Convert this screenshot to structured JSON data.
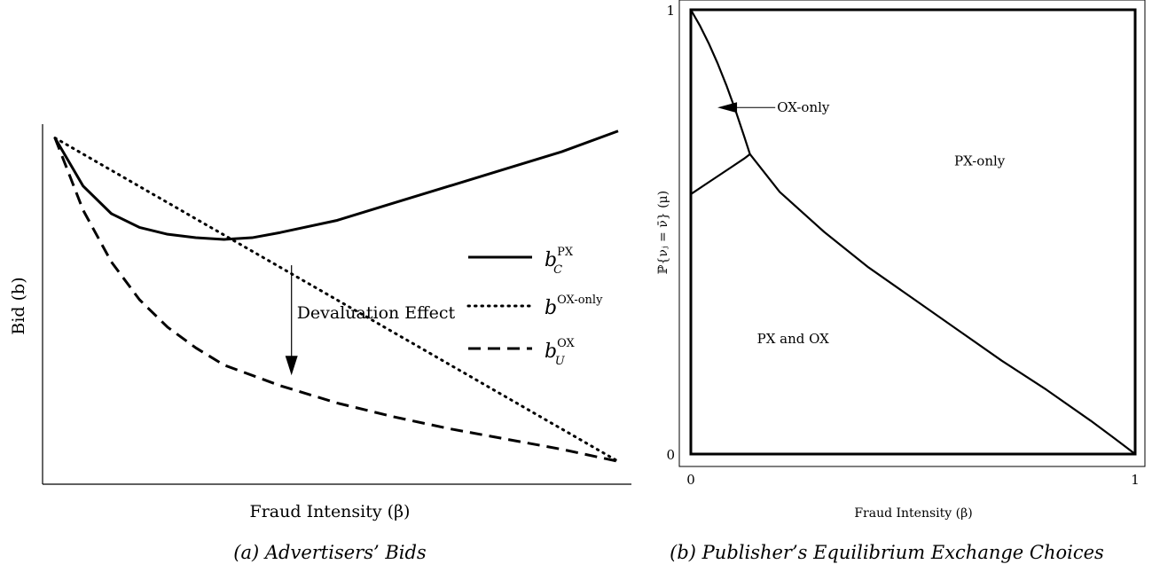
{
  "chart_data": [
    {
      "type": "line",
      "panel": "a",
      "caption": "(a) Advertisers’ Bids",
      "xlabel": "Fraud Intensity (β)",
      "ylabel": "Bid (b)",
      "xlim": [
        0,
        1
      ],
      "ylim": [
        0,
        1
      ],
      "grid": false,
      "legend_position": "right",
      "series": [
        {
          "name_base": "b",
          "name_sub": "C",
          "name_sup": "PX",
          "style": "solid",
          "x": [
            0,
            0.05,
            0.1,
            0.15,
            0.2,
            0.25,
            0.3,
            0.35,
            0.4,
            0.5,
            0.6,
            0.7,
            0.8,
            0.9,
            1.0
          ],
          "y": [
            0.96,
            0.82,
            0.74,
            0.7,
            0.68,
            0.67,
            0.665,
            0.67,
            0.685,
            0.72,
            0.77,
            0.82,
            0.87,
            0.92,
            0.98
          ]
        },
        {
          "name_base": "b",
          "name_sub": "",
          "name_sup": "OX-only",
          "style": "dotted",
          "x": [
            0,
            1
          ],
          "y": [
            0.96,
            0.02
          ]
        },
        {
          "name_base": "b",
          "name_sub": "U",
          "name_sup": "OX",
          "style": "dashed",
          "x": [
            0,
            0.05,
            0.1,
            0.15,
            0.2,
            0.25,
            0.3,
            0.4,
            0.5,
            0.6,
            0.7,
            0.8,
            0.9,
            1.0
          ],
          "y": [
            0.96,
            0.75,
            0.6,
            0.49,
            0.41,
            0.35,
            0.3,
            0.24,
            0.19,
            0.15,
            0.115,
            0.085,
            0.055,
            0.02
          ]
        }
      ],
      "annotations": [
        {
          "text": "Devaluation Effect",
          "arrow_x": 0.42,
          "arrow_from_y": 0.59,
          "arrow_to_y": 0.27
        }
      ]
    },
    {
      "type": "area",
      "panel": "b",
      "caption": "(b) Publisher’s Equilibrium Exchange Choices",
      "xlabel": "Fraud Intensity (β)",
      "ylabel": "ℙ{νⱼ = ν̄} (μ)",
      "xlim": [
        0,
        1
      ],
      "ylim": [
        0,
        1
      ],
      "xticks": [
        "0",
        "1"
      ],
      "yticks": [
        "0",
        "1"
      ],
      "grid": false,
      "boundaries": [
        {
          "id": "upper-left",
          "x": [
            0,
            0.02,
            0.04,
            0.06,
            0.08,
            0.1,
            0.12,
            0.133
          ],
          "y": [
            1.0,
            0.965,
            0.925,
            0.88,
            0.83,
            0.775,
            0.715,
            0.675
          ]
        },
        {
          "id": "lower-left",
          "x": [
            0,
            0.03,
            0.06,
            0.09,
            0.12,
            0.133
          ],
          "y": [
            0.585,
            0.605,
            0.625,
            0.645,
            0.665,
            0.675
          ]
        },
        {
          "id": "main",
          "x": [
            0.133,
            0.2,
            0.3,
            0.4,
            0.5,
            0.6,
            0.7,
            0.8,
            0.9,
            0.95,
            1.0
          ],
          "y": [
            0.675,
            0.59,
            0.5,
            0.42,
            0.35,
            0.28,
            0.21,
            0.145,
            0.075,
            0.038,
            0
          ]
        }
      ],
      "regions": [
        {
          "label": "PX-only",
          "x": 0.65,
          "y": 0.65
        },
        {
          "label": "PX and OX",
          "x": 0.23,
          "y": 0.25
        },
        {
          "label": "OX-only",
          "x": 0.19,
          "y": 0.78,
          "arrow_to_x": 0.06,
          "arrow_to_y": 0.78
        }
      ]
    }
  ]
}
